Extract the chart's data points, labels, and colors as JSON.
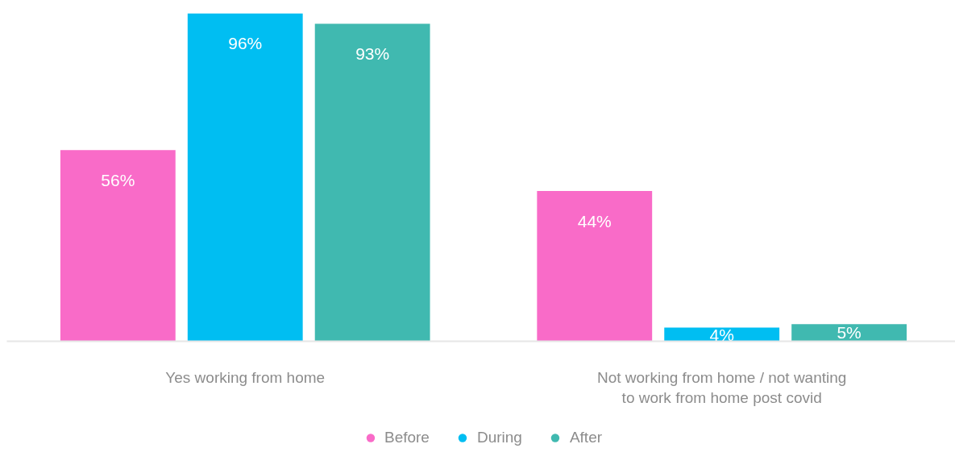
{
  "chart_data": {
    "type": "bar",
    "categories": [
      "Yes working from home",
      "Not working from home / not wanting to work from home post covid"
    ],
    "series": [
      {
        "name": "Before",
        "color": "#f96bc8",
        "values": [
          56,
          44
        ],
        "value_labels": [
          "56%",
          "44%"
        ]
      },
      {
        "name": "During",
        "color": "#00bef2",
        "values": [
          96,
          4
        ],
        "value_labels": [
          "96%",
          "4%"
        ]
      },
      {
        "name": "After",
        "color": "#40b9b0",
        "values": [
          93,
          5
        ],
        "value_labels": [
          "93%",
          "5%"
        ]
      }
    ],
    "legend": "bottom",
    "grid": false
  }
}
